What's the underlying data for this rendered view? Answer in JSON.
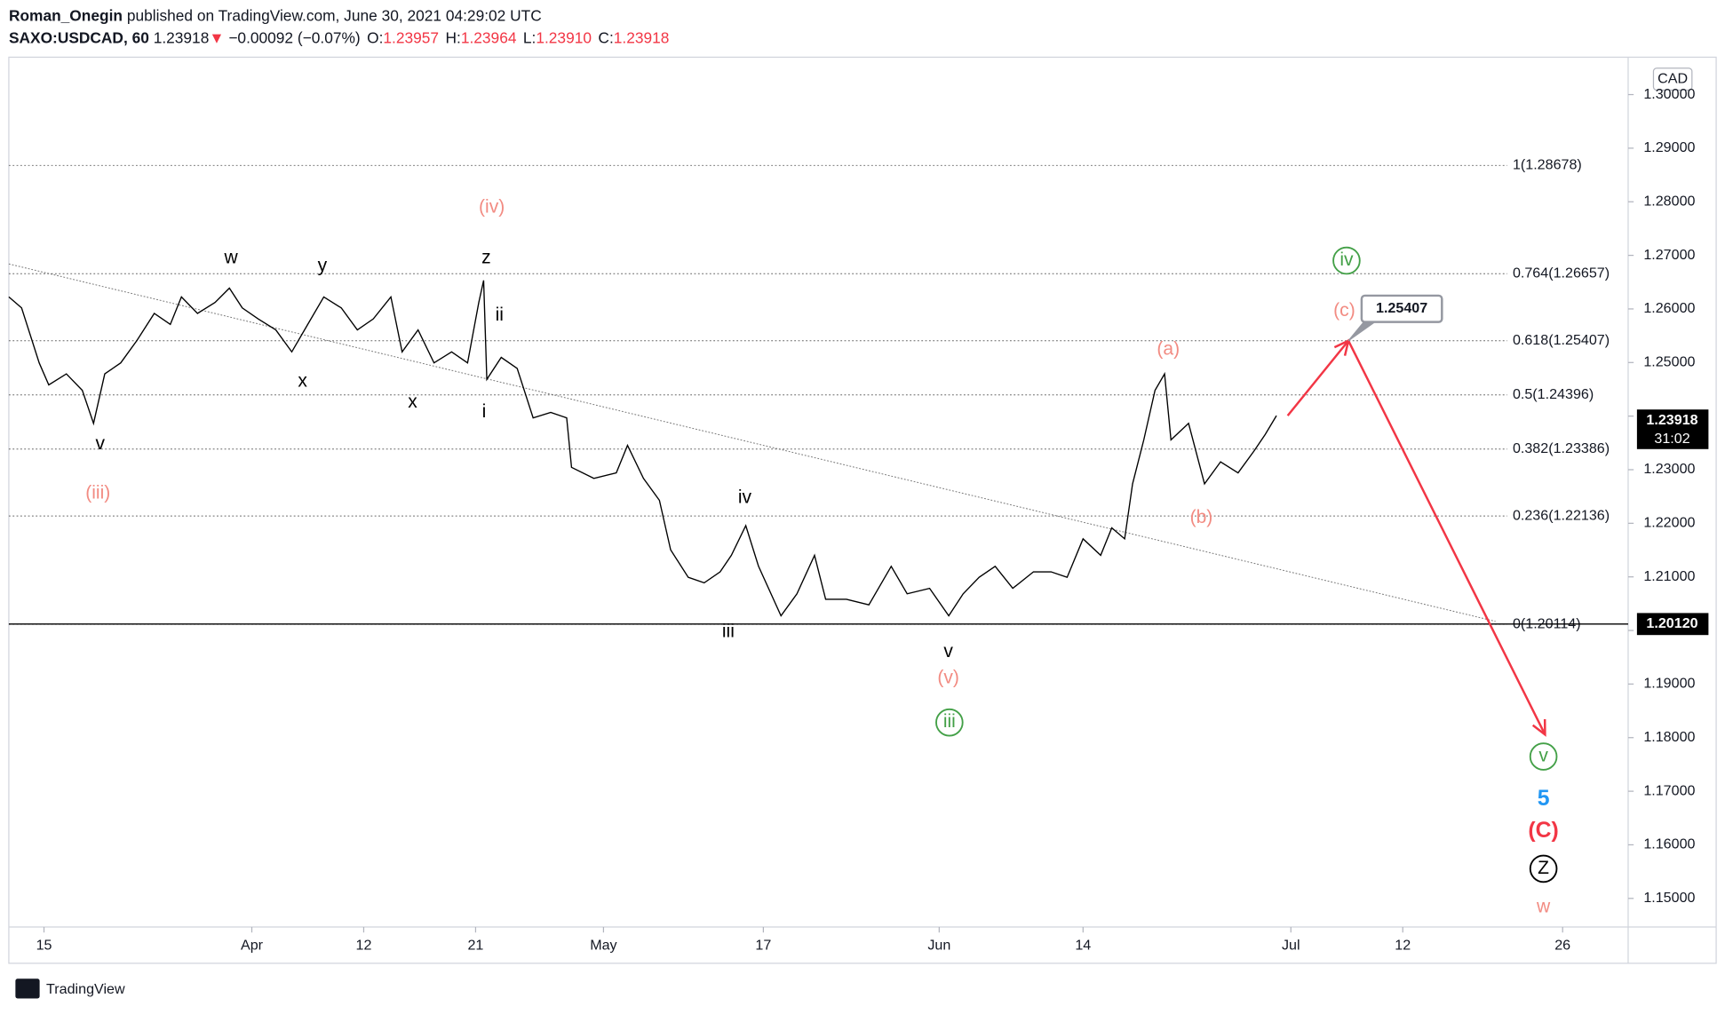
{
  "header": {
    "author": "Roman_Onegin",
    "published": "published on TradingView.com, June 30, 2021 04:29:02 UTC",
    "symbol": "SAXO:USDCAD, 60",
    "price": "1.23918",
    "arrow": "▼",
    "change": "−0.00092 (−0.07%)",
    "ohlc": [
      {
        "label": "O:",
        "value": "1.23957"
      },
      {
        "label": "H:",
        "value": "1.23964"
      },
      {
        "label": "L:",
        "value": "1.23910"
      },
      {
        "label": "C:",
        "value": "1.23918"
      }
    ]
  },
  "footer": {
    "brand": "TradingView"
  },
  "chart_data": {
    "type": "line",
    "color": "#000000",
    "currency": "CAD",
    "x": [
      -2.2,
      -1.4,
      -0.3,
      0.3,
      1.4,
      2.4,
      3.1,
      3.8,
      4.8,
      5.8,
      6.9,
      7.9,
      8.6,
      9.6,
      10.7,
      11.6,
      12.4,
      13.4,
      14.5,
      15.5,
      16.5,
      17.5,
      18.6,
      19.6,
      20.6,
      21.7,
      22.4,
      23.4,
      24.4,
      25.5,
      26.5,
      27.2,
      27.5,
      27.7,
      28.6,
      29.6,
      30.6,
      31.7,
      32.7,
      33.0,
      34.4,
      35.8,
      36.5,
      37.5,
      38.5,
      39.2,
      40.3,
      41.3,
      42.3,
      43.0,
      43.9,
      44.7,
      46.1,
      47.1,
      48.2,
      48.9,
      50.2,
      51.6,
      53.0,
      54.0,
      55.4,
      56.6,
      57.5,
      58.5,
      59.5,
      60.6,
      61.9,
      63.0,
      64.0,
      65.0,
      66.1,
      66.8,
      67.6,
      68.1,
      68.8,
      69.5,
      70.1,
      70.5,
      71.6,
      72.6,
      73.6,
      74.7,
      75.7,
      76.4,
      77.1
    ],
    "values": [
      1.26224,
      1.26019,
      1.24993,
      1.24582,
      1.24788,
      1.2448,
      1.23864,
      1.24788,
      1.24993,
      1.25403,
      1.25916,
      1.25711,
      1.26224,
      1.25916,
      1.26121,
      1.26388,
      1.26019,
      1.25814,
      1.25608,
      1.25198,
      1.25711,
      1.26224,
      1.26019,
      1.25608,
      1.25814,
      1.26224,
      1.25198,
      1.25608,
      1.24993,
      1.25198,
      1.24993,
      1.26121,
      1.26532,
      1.24685,
      1.25095,
      1.2489,
      1.23967,
      1.24069,
      1.23967,
      1.23043,
      1.22838,
      1.22941,
      1.23454,
      1.22838,
      1.22428,
      1.21504,
      1.20991,
      1.20889,
      1.21094,
      1.21402,
      1.21956,
      1.21196,
      1.20273,
      1.20683,
      1.21402,
      1.20581,
      1.20581,
      1.20478,
      1.21196,
      1.20683,
      1.20786,
      1.20273,
      1.20683,
      1.20991,
      1.21196,
      1.20786,
      1.21094,
      1.21094,
      1.20991,
      1.21709,
      1.21402,
      1.21915,
      1.21709,
      1.22735,
      1.23556,
      1.2448,
      1.24788,
      1.23556,
      1.23864,
      1.22735,
      1.23146,
      1.22941,
      1.23351,
      1.23659,
      1.24008
    ],
    "xlim": [
      -2.2,
      99.1
    ],
    "ylim": [
      1.14466,
      1.30698
    ],
    "xticks": [
      {
        "value": 0,
        "label": "15"
      },
      {
        "value": 13,
        "label": "Apr"
      },
      {
        "value": 20,
        "label": "12"
      },
      {
        "value": 27,
        "label": "21"
      },
      {
        "value": 35,
        "label": "May"
      },
      {
        "value": 45,
        "label": "17"
      },
      {
        "value": 56,
        "label": "Jun"
      },
      {
        "value": 65,
        "label": "14"
      },
      {
        "value": 78,
        "label": "Jul"
      },
      {
        "value": 85,
        "label": "12"
      },
      {
        "value": 95,
        "label": "26"
      }
    ],
    "yticks": [
      {
        "value": 1.15,
        "label": "1.15000"
      },
      {
        "value": 1.16,
        "label": "1.16000"
      },
      {
        "value": 1.17,
        "label": "1.17000"
      },
      {
        "value": 1.18,
        "label": "1.18000"
      },
      {
        "value": 1.19,
        "label": "1.19000"
      },
      {
        "value": 1.2,
        "label": "1.20000"
      },
      {
        "value": 1.21,
        "label": "1.21000"
      },
      {
        "value": 1.22,
        "label": "1.22000"
      },
      {
        "value": 1.23,
        "label": "1.23000"
      },
      {
        "value": 1.24,
        "label": "1.24000"
      },
      {
        "value": 1.25,
        "label": "1.25000"
      },
      {
        "value": 1.26,
        "label": "1.26000"
      },
      {
        "value": 1.27,
        "label": "1.27000"
      },
      {
        "value": 1.28,
        "label": "1.28000"
      },
      {
        "value": 1.29,
        "label": "1.29000"
      },
      {
        "value": 1.3,
        "label": "1.30000"
      }
    ],
    "fib_levels": [
      {
        "value": 1.28678,
        "label": "1(1.28678)"
      },
      {
        "value": 1.26657,
        "label": "0.764(1.26657)"
      },
      {
        "value": 1.25407,
        "label": "0.618(1.25407)"
      },
      {
        "value": 1.24396,
        "label": "0.5(1.24396)"
      },
      {
        "value": 1.23386,
        "label": "0.382(1.23386)"
      },
      {
        "value": 1.22136,
        "label": "0.236(1.22136)"
      },
      {
        "value": 1.20114,
        "label": "0(1.20114)"
      }
    ],
    "hline": {
      "value": 1.2012,
      "label": "1.20120"
    },
    "last_price": {
      "value": 1.23918,
      "countdown": "31:02"
    },
    "callout": {
      "value": 1.25407,
      "label": "1.25407"
    },
    "trendline": {
      "x": [
        -2.2,
        90.8
      ],
      "y": [
        1.2684,
        1.2017
      ]
    },
    "projection": {
      "color": "#f23645",
      "x": [
        77.8,
        81.6,
        93.9
      ],
      "y": [
        1.24008,
        1.25407,
        1.18057
      ]
    },
    "annotations": [
      {
        "text": "w",
        "color": "#000000"
      },
      {
        "text": "y",
        "color": "#000000"
      },
      {
        "text": "z",
        "color": "#000000"
      },
      {
        "text": "(iv)",
        "color": "#f28b82"
      },
      {
        "text": "ii",
        "color": "#000000"
      },
      {
        "text": "i",
        "color": "#000000"
      },
      {
        "text": "x",
        "color": "#000000"
      },
      {
        "text": "x",
        "color": "#000000"
      },
      {
        "text": "v",
        "color": "#000000"
      },
      {
        "text": "(iii)",
        "color": "#f28b82"
      },
      {
        "text": "iv",
        "color": "#000000"
      },
      {
        "text": "iii",
        "color": "#000000"
      },
      {
        "text": "v",
        "color": "#000000"
      },
      {
        "text": "(v)",
        "color": "#f28b82"
      },
      {
        "text": "iii",
        "color": "#43a047",
        "circled": true
      },
      {
        "text": "(a)",
        "color": "#f28b82"
      },
      {
        "text": "(b)",
        "color": "#f28b82"
      },
      {
        "text": "(c)",
        "color": "#f28b82"
      },
      {
        "text": "iv",
        "color": "#43a047",
        "circled": true
      },
      {
        "text": "v",
        "color": "#43a047",
        "circled": true
      },
      {
        "text": "5",
        "color": "#2196f3"
      },
      {
        "text": "(C)",
        "color": "#f23645"
      },
      {
        "text": "Z",
        "color": "#000000",
        "circled": true
      },
      {
        "text": "w",
        "color": "#f28b82"
      }
    ]
  }
}
